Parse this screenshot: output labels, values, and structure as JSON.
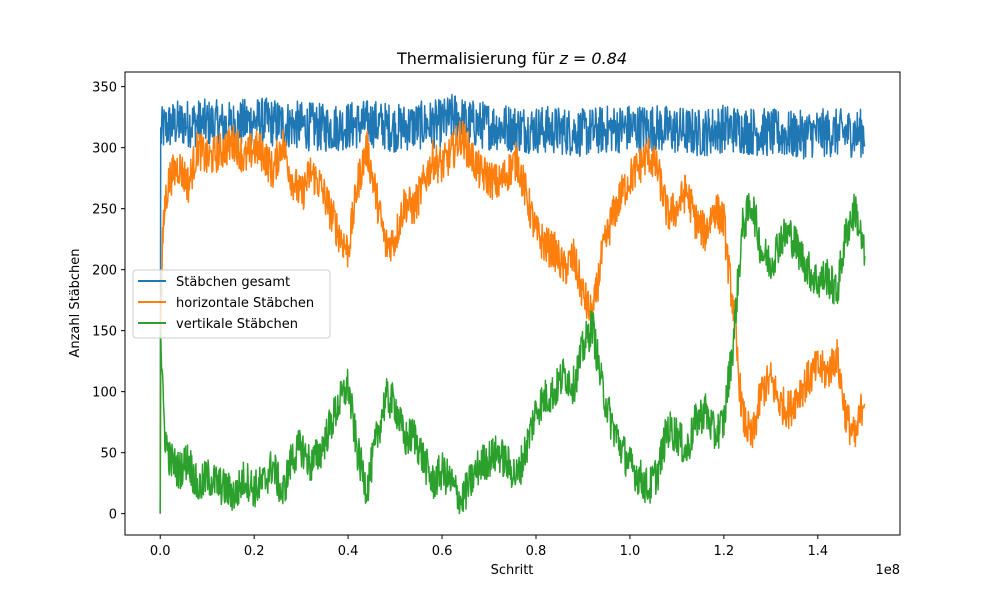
{
  "chart_data": {
    "type": "line",
    "title_prefix": "Thermalisierung für ",
    "title_math": "z = 0.84",
    "xlabel": "Schritt",
    "ylabel": "Anzahl Stäbchen",
    "x_offset_label": "1e8",
    "xlim": [
      -0.075,
      1.575
    ],
    "ylim": [
      -17.5,
      362
    ],
    "x_ticks": [
      0.0,
      0.2,
      0.4,
      0.6,
      0.8,
      1.0,
      1.2,
      1.4
    ],
    "x_tick_labels": [
      "0.0",
      "0.2",
      "0.4",
      "0.6",
      "0.8",
      "1.0",
      "1.2",
      "1.4"
    ],
    "y_ticks": [
      0,
      50,
      100,
      150,
      200,
      250,
      300,
      350
    ],
    "y_tick_labels": [
      "0",
      "50",
      "100",
      "150",
      "200",
      "250",
      "300",
      "350"
    ],
    "grid": false,
    "legend_position": "center-left",
    "series": [
      {
        "name": "Stäbchen gesamt",
        "color": "#1f77b4",
        "x": [
          0,
          0.001,
          0.005,
          0.02,
          0.05,
          0.1,
          0.15,
          0.2,
          0.25,
          0.3,
          0.35,
          0.4,
          0.45,
          0.5,
          0.55,
          0.6,
          0.63,
          0.65,
          0.7,
          0.75,
          0.8,
          0.85,
          0.9,
          0.95,
          1.0,
          1.05,
          1.1,
          1.15,
          1.2,
          1.25,
          1.3,
          1.35,
          1.4,
          1.45,
          1.5
        ],
        "values": [
          0,
          310,
          315,
          318,
          320,
          320,
          318,
          322,
          320,
          318,
          316,
          318,
          320,
          316,
          318,
          320,
          326,
          320,
          318,
          316,
          315,
          314,
          312,
          315,
          316,
          316,
          314,
          312,
          316,
          314,
          312,
          310,
          312,
          312,
          312
        ],
        "band": 20
      },
      {
        "name": "horizontale Stäbchen",
        "color": "#ff7f0e",
        "x": [
          0,
          0.001,
          0.005,
          0.01,
          0.02,
          0.04,
          0.06,
          0.08,
          0.1,
          0.12,
          0.14,
          0.16,
          0.18,
          0.2,
          0.22,
          0.24,
          0.26,
          0.28,
          0.3,
          0.32,
          0.34,
          0.36,
          0.38,
          0.4,
          0.42,
          0.44,
          0.46,
          0.48,
          0.5,
          0.52,
          0.54,
          0.56,
          0.58,
          0.6,
          0.62,
          0.64,
          0.66,
          0.68,
          0.7,
          0.72,
          0.74,
          0.76,
          0.78,
          0.8,
          0.82,
          0.84,
          0.86,
          0.88,
          0.9,
          0.92,
          0.94,
          0.96,
          0.98,
          1.0,
          1.02,
          1.04,
          1.06,
          1.08,
          1.1,
          1.12,
          1.14,
          1.16,
          1.18,
          1.2,
          1.21,
          1.22,
          1.23,
          1.24,
          1.25,
          1.26,
          1.28,
          1.3,
          1.32,
          1.34,
          1.36,
          1.38,
          1.4,
          1.42,
          1.44,
          1.46,
          1.48,
          1.5
        ],
        "values": [
          0,
          150,
          220,
          255,
          275,
          285,
          270,
          300,
          290,
          295,
          300,
          305,
          290,
          300,
          295,
          280,
          305,
          275,
          260,
          280,
          270,
          250,
          230,
          215,
          270,
          300,
          260,
          220,
          225,
          255,
          250,
          270,
          290,
          285,
          295,
          310,
          295,
          280,
          275,
          270,
          280,
          290,
          260,
          230,
          220,
          215,
          200,
          210,
          180,
          160,
          210,
          240,
          260,
          275,
          285,
          295,
          280,
          245,
          250,
          265,
          240,
          230,
          250,
          240,
          200,
          170,
          120,
          80,
          70,
          60,
          100,
          110,
          90,
          85,
          100,
          110,
          120,
          115,
          130,
          80,
          60,
          100
        ],
        "band": 16
      },
      {
        "name": "vertikale Stäbchen",
        "color": "#2ca02c",
        "x": [
          0,
          0.001,
          0.005,
          0.01,
          0.02,
          0.04,
          0.06,
          0.08,
          0.1,
          0.12,
          0.14,
          0.16,
          0.18,
          0.2,
          0.22,
          0.24,
          0.26,
          0.28,
          0.3,
          0.32,
          0.34,
          0.36,
          0.38,
          0.4,
          0.42,
          0.44,
          0.46,
          0.48,
          0.5,
          0.52,
          0.54,
          0.56,
          0.58,
          0.6,
          0.62,
          0.64,
          0.66,
          0.68,
          0.7,
          0.72,
          0.74,
          0.76,
          0.78,
          0.8,
          0.82,
          0.84,
          0.86,
          0.88,
          0.9,
          0.92,
          0.94,
          0.96,
          0.98,
          1.0,
          1.02,
          1.04,
          1.06,
          1.08,
          1.1,
          1.12,
          1.14,
          1.16,
          1.18,
          1.2,
          1.21,
          1.22,
          1.23,
          1.24,
          1.25,
          1.26,
          1.28,
          1.3,
          1.32,
          1.34,
          1.36,
          1.38,
          1.4,
          1.42,
          1.44,
          1.46,
          1.48,
          1.5
        ],
        "values": [
          0,
          150,
          100,
          65,
          45,
          35,
          45,
          20,
          30,
          25,
          20,
          15,
          30,
          20,
          25,
          40,
          15,
          45,
          55,
          40,
          50,
          70,
          90,
          105,
          50,
          20,
          60,
          95,
          90,
          60,
          65,
          45,
          25,
          35,
          25,
          10,
          25,
          40,
          45,
          50,
          40,
          30,
          55,
          85,
          95,
          100,
          115,
          105,
          135,
          155,
          105,
          75,
          55,
          40,
          30,
          20,
          35,
          70,
          65,
          50,
          75,
          85,
          65,
          75,
          110,
          140,
          190,
          235,
          245,
          255,
          215,
          205,
          225,
          230,
          215,
          200,
          190,
          195,
          180,
          230,
          250,
          210
        ],
        "band": 16
      }
    ]
  }
}
